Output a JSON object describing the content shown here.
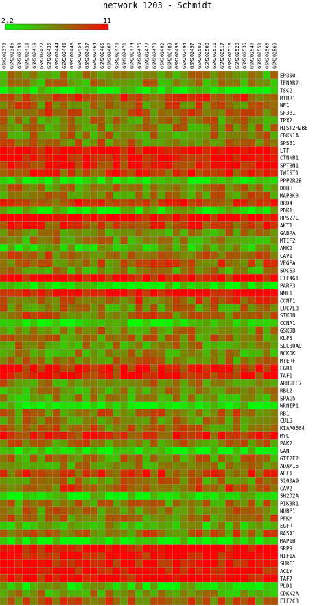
{
  "chart_data": {
    "type": "heatmap",
    "title": "network 1203 - Schmidt",
    "colorbar": {
      "min_label": "2.2",
      "max_label": "11",
      "min": 2.2,
      "max": 11,
      "low_color": "#00ff00",
      "high_color": "#ff0000",
      "mid_color": "#808000"
    },
    "columns": [
      "GSM202373",
      "GSM202385",
      "GSM202399",
      "GSM202410",
      "GSM202419",
      "GSM202427",
      "GSM202435",
      "GSM202444",
      "GSM202446",
      "GSM202448",
      "GSM202454",
      "GSM202457",
      "GSM202464",
      "GSM202465",
      "GSM202467",
      "GSM202470",
      "GSM202471",
      "GSM202474",
      "GSM202475",
      "GSM202477",
      "GSM202478",
      "GSM202482",
      "GSM202489",
      "GSM202493",
      "GSM202494",
      "GSM202497",
      "GSM202502",
      "GSM202508",
      "GSM202511",
      "GSM202517",
      "GSM202518",
      "GSM202528",
      "GSM202535",
      "GSM202540",
      "GSM202551",
      "GSM202565",
      "GSM202569"
    ],
    "rows": [
      "EP300",
      "IFNAR2",
      "TSC2",
      "MTRR1",
      "NF1",
      "SF3B1",
      "TPX2",
      "HIST2H2BE",
      "CDKN1A",
      "SPSB1",
      "LTF",
      "CTNNB1",
      "SPTBN1",
      "TWIST1",
      "PPP2R2B",
      "DOHH",
      "MAP3K3",
      "BRD4",
      "PDK1",
      "RPS27L",
      "AKT1",
      "GABPA",
      "MTIF2",
      "ANK2",
      "CAV1",
      "VEGFA",
      "SOCS3",
      "EIF4G1",
      "PARP3",
      "NME1",
      "CCNT1",
      "LUC7L3",
      "STK38",
      "CCNA1",
      "GSK3B",
      "KLF5",
      "SLC30A9",
      "BCKDK",
      "MTERF",
      "EGR1",
      "TAF1",
      "ARHGEF7",
      "RBL2",
      "SPAG5",
      "WRNIP1",
      "RB1",
      "CUL5",
      "KIAA0664",
      "MYC",
      "PAK2",
      "GAN",
      "GTF2F2",
      "ADAM15",
      "AFF1",
      "S100A9",
      "CAV2",
      "SH2D2A",
      "PIK3R1",
      "NUBP1",
      "PFKM",
      "EGFR",
      "RASA1",
      "MAP1B",
      "SRP9",
      "HIF1A",
      "SURF1",
      "ACLY",
      "TAF7",
      "PLD1",
      "CDKN2A",
      "EIF2C3"
    ],
    "row_means": [
      0.42,
      0.45,
      0.06,
      0.72,
      0.58,
      0.62,
      0.5,
      0.5,
      0.48,
      0.52,
      0.96,
      0.95,
      0.85,
      0.78,
      0.1,
      0.5,
      0.52,
      0.76,
      0.2,
      0.97,
      0.78,
      0.48,
      0.45,
      0.28,
      0.6,
      0.62,
      0.45,
      0.95,
      0.14,
      0.98,
      0.66,
      0.5,
      0.6,
      0.14,
      0.5,
      0.52,
      0.46,
      0.44,
      0.5,
      0.88,
      0.9,
      0.5,
      0.45,
      0.42,
      0.12,
      0.55,
      0.5,
      0.55,
      0.8,
      0.52,
      0.12,
      0.5,
      0.45,
      0.72,
      0.5,
      0.66,
      0.12,
      0.5,
      0.52,
      0.55,
      0.32,
      0.58,
      0.1,
      0.97,
      0.98,
      0.96,
      0.97,
      0.96,
      0.24,
      0.42,
      0.6
    ],
    "noise_seed": 1203,
    "noise_amplitude": 0.26
  }
}
